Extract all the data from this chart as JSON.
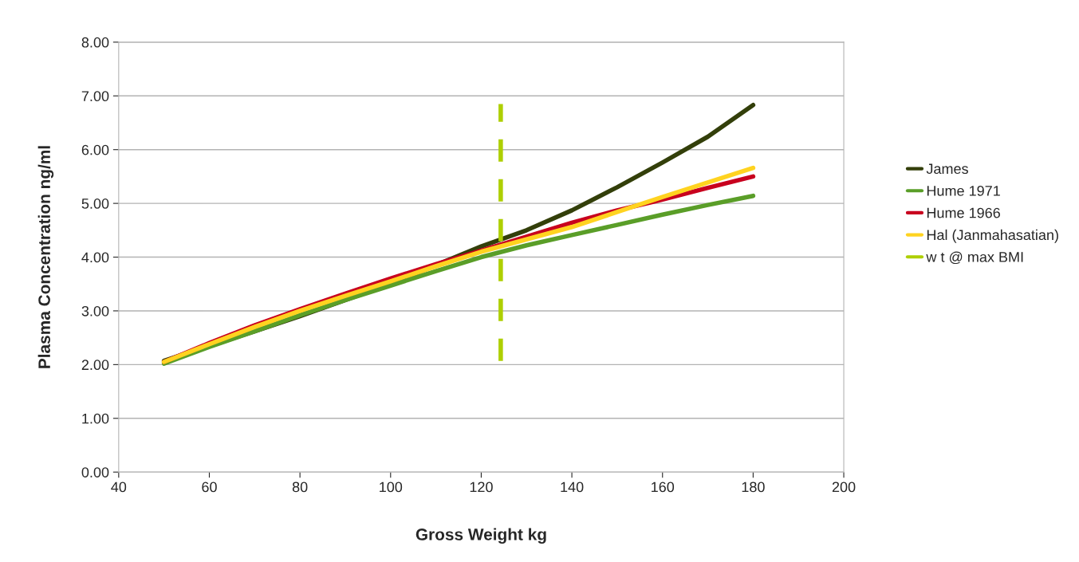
{
  "chart_data": {
    "type": "line",
    "xlabel": "Gross Weight kg",
    "ylabel": "Plasma Concentration ng/ml",
    "x": [
      50,
      60,
      70,
      80,
      90,
      100,
      110,
      120,
      130,
      140,
      150,
      160,
      170,
      180
    ],
    "series": [
      {
        "name": "James",
        "color": "#333f0a",
        "values": [
          2.07,
          2.35,
          2.62,
          2.9,
          3.2,
          3.5,
          3.85,
          4.2,
          4.5,
          4.87,
          5.3,
          5.76,
          6.24,
          6.83
        ]
      },
      {
        "name": "Hume 1971",
        "color": "#5a9e28",
        "values": [
          2.02,
          2.33,
          2.62,
          2.92,
          3.2,
          3.47,
          3.74,
          4.0,
          4.22,
          4.41,
          4.6,
          4.79,
          4.97,
          5.14
        ]
      },
      {
        "name": "Hume 1966",
        "color": "#c8001e",
        "values": [
          2.05,
          2.4,
          2.73,
          3.03,
          3.32,
          3.6,
          3.87,
          4.12,
          4.38,
          4.64,
          4.87,
          5.07,
          5.29,
          5.5
        ]
      },
      {
        "name": "Hal (Janmahasatian)",
        "color": "#ffd320",
        "values": [
          2.05,
          2.38,
          2.7,
          3.0,
          3.28,
          3.55,
          3.83,
          4.1,
          4.33,
          4.56,
          4.84,
          5.12,
          5.39,
          5.66
        ]
      },
      {
        "name": "w t @ max BMI",
        "color": "#aecf00",
        "x": [
          124.3,
          124.3
        ],
        "values": [
          2.07,
          6.85
        ],
        "line_style": "dashed"
      }
    ],
    "xlim": [
      40,
      200
    ],
    "xticks": [
      40,
      60,
      80,
      100,
      120,
      140,
      160,
      180,
      200
    ],
    "ylim": [
      0,
      8
    ],
    "yticks": [
      {
        "value": 0,
        "label": "0.00"
      },
      {
        "value": 1,
        "label": "1.00"
      },
      {
        "value": 2,
        "label": "2.00"
      },
      {
        "value": 3,
        "label": "3.00"
      },
      {
        "value": 4,
        "label": "4.00"
      },
      {
        "value": 5,
        "label": "5.00"
      },
      {
        "value": 6,
        "label": "6.00"
      },
      {
        "value": 7,
        "label": "7.00"
      },
      {
        "value": 8,
        "label": "8.00"
      }
    ],
    "grid": "y",
    "legend": "right"
  }
}
